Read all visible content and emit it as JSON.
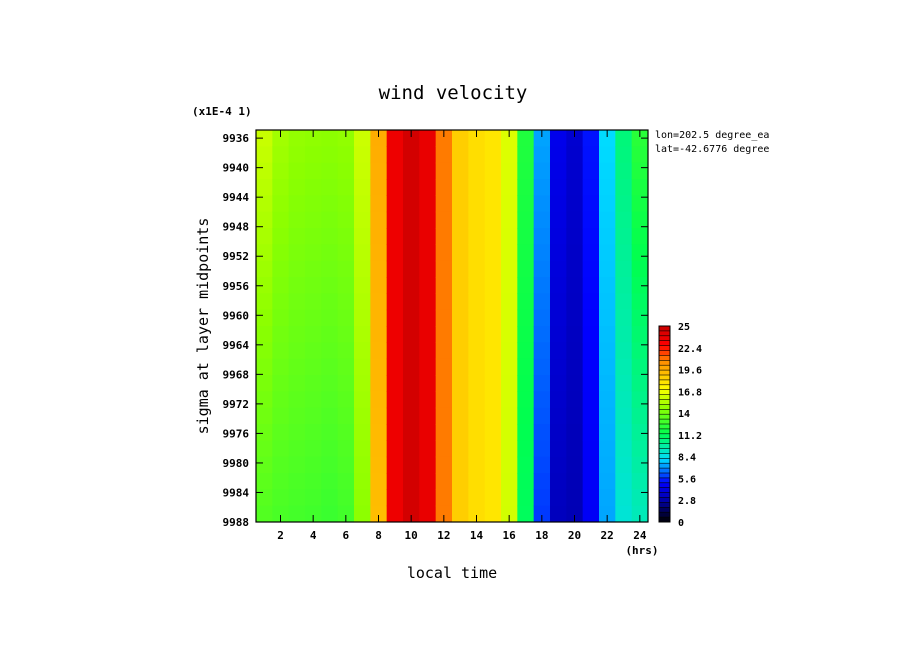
{
  "chart_data": {
    "type": "heatmap",
    "title": "wind velocity",
    "xlabel": "local time",
    "x_unit": "(hrs)",
    "ylabel": "sigma at layer midpoints",
    "y_scale_note": "(x1E-4 1)",
    "location_notes": [
      "lon=202.5 degree_ea",
      "lat=-42.6776 degree"
    ],
    "xlim": [
      0.5,
      24.5
    ],
    "ylim": [
      0.99349,
      0.9988
    ],
    "y_inverted": true,
    "x_ticks": [
      "2",
      "4",
      "6",
      "8",
      "10",
      "12",
      "14",
      "16",
      "18",
      "20",
      "22",
      "24"
    ],
    "y_ticks": [
      "9936",
      "9940",
      "9944",
      "9948",
      "9952",
      "9956",
      "9960",
      "9964",
      "9968",
      "9972",
      "9976",
      "9980",
      "9984",
      "9988"
    ],
    "colorbar": {
      "min": 0,
      "max": 25,
      "tick_labels": [
        "25",
        "22.4",
        "19.6",
        "16.8",
        "14",
        "11.2",
        "8.4",
        "5.6",
        "2.8",
        "0"
      ]
    },
    "x": [
      0.5,
      1.5,
      2.5,
      3.5,
      4.5,
      5.5,
      6.5,
      7.5,
      8.5,
      9.5,
      10.5,
      11.5,
      12.5,
      13.5,
      14.5,
      15.5,
      16.5,
      17.5,
      18.5,
      19.5,
      20.5,
      21.5,
      22.5,
      23.5,
      24.5
    ],
    "y": [
      0.99349,
      0.9988
    ],
    "values_top": [
      16.5,
      15.2,
      14.8,
      14.6,
      14.6,
      14.5,
      14.8,
      17.0,
      22.0,
      24.5,
      24.5,
      22.5,
      19.0,
      18.0,
      18.0,
      17.5,
      15.0,
      9.0,
      5.5,
      3.5,
      4.0,
      6.5,
      9.5,
      11.5,
      13.0
    ],
    "values_bottom": [
      13.2,
      13.0,
      12.8,
      12.8,
      12.6,
      12.5,
      13.0,
      16.0,
      22.0,
      24.5,
      24.5,
      22.5,
      19.0,
      18.0,
      18.0,
      17.5,
      14.5,
      7.5,
      4.0,
      2.5,
      3.5,
      6.0,
      8.5,
      9.0,
      9.5
    ]
  }
}
